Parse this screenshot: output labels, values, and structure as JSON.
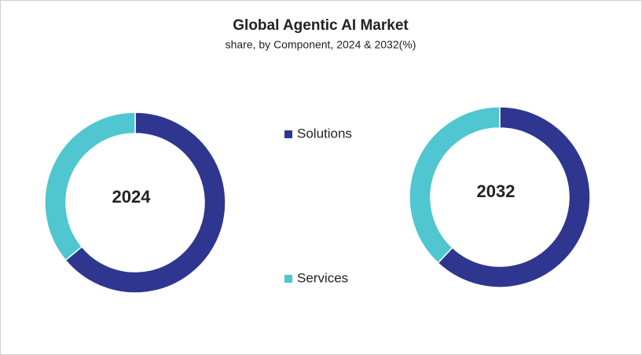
{
  "chart_data": [
    {
      "type": "donut",
      "title": "Global Agentic AI Market",
      "subtitle": "share, by Component, 2024 & 2032(%)",
      "label": "2024",
      "categories": [
        "Solutions",
        "Services"
      ],
      "values": [
        64,
        36
      ],
      "colors": [
        "#2e3690",
        "#4fc6d0"
      ]
    },
    {
      "type": "donut",
      "label": "2032",
      "categories": [
        "Solutions",
        "Services"
      ],
      "values": [
        62,
        38
      ],
      "colors": [
        "#2e3690",
        "#4fc6d0"
      ]
    }
  ]
}
